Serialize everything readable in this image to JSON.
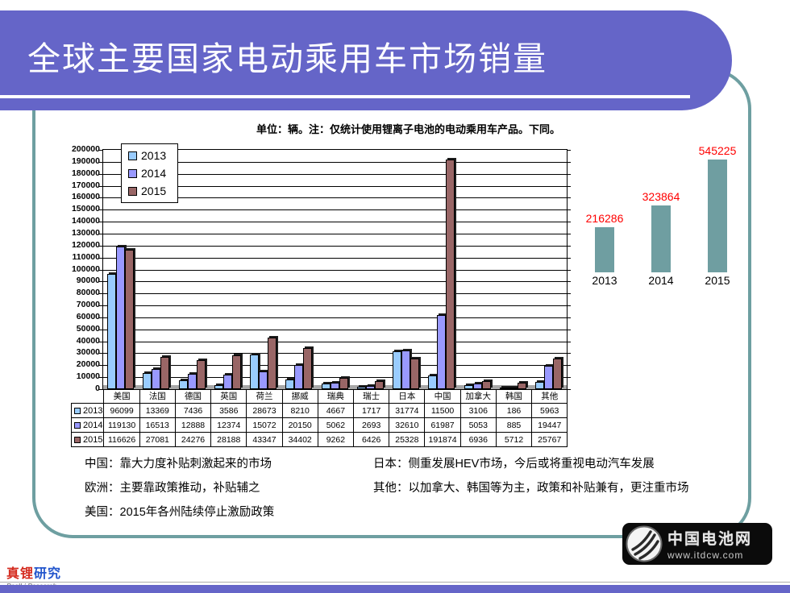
{
  "title": "全球主要国家电动乘用车市场销量",
  "note": "单位：辆。注：仅统计使用锂离子电池的电动乘用车产品。下同。",
  "colors": {
    "banner": "#6565C8",
    "frame_teal": "#6E9FA1",
    "series_2013": "#99CCFF",
    "series_2014": "#9999FF",
    "series_2015": "#996666",
    "mini_bar_teal": "#6F9EA1",
    "mini_label_red": "#FF0000"
  },
  "chart_data": [
    {
      "type": "bar",
      "title": "",
      "categories": [
        "美国",
        "法国",
        "德国",
        "英国",
        "荷兰",
        "挪威",
        "瑞典",
        "瑞士",
        "日本",
        "中国",
        "加拿大",
        "韩国",
        "其他"
      ],
      "series": [
        {
          "name": "2013",
          "color": "#99CCFF",
          "values": [
            96099,
            13369,
            7436,
            3586,
            28673,
            8210,
            4667,
            1717,
            31774,
            11500,
            3106,
            186,
            5963
          ]
        },
        {
          "name": "2014",
          "color": "#9999FF",
          "values": [
            119130,
            16513,
            12888,
            12374,
            15072,
            20150,
            5062,
            2693,
            32610,
            61987,
            5053,
            885,
            19447
          ]
        },
        {
          "name": "2015",
          "color": "#996666",
          "values": [
            116626,
            27081,
            24276,
            28188,
            43347,
            34402,
            9262,
            6426,
            25328,
            191874,
            6936,
            5712,
            25767
          ]
        }
      ],
      "ylim": [
        0,
        200000
      ],
      "ytick_step": 10000,
      "grid": true,
      "legend_position": "top-left-inside",
      "has_data_table": true
    },
    {
      "type": "bar",
      "categories": [
        "2013",
        "2014",
        "2015"
      ],
      "values": [
        216286,
        323864,
        545225
      ],
      "bar_color": "#6F9EA1",
      "label_color": "#FF0000",
      "legend_position": "none",
      "grid": false
    }
  ],
  "annotations": {
    "left": [
      "中国：靠大力度补贴刺激起来的市场",
      "欧洲：主要靠政策推动，补贴辅之",
      "美国：2015年各州陆续停止激励政策"
    ],
    "right": [
      "日本：侧重发展HEV市场，今后或将重视电动汽车发展",
      "其他：以加拿大、韩国等为主，政策和补贴兼有，更注重市场"
    ]
  },
  "footer": {
    "left_logo": {
      "chars": [
        {
          "t": "真",
          "c": "#D42A1E"
        },
        {
          "t": "锂",
          "c": "#D42A1E"
        },
        {
          "t": "研",
          "c": "#2255CC"
        },
        {
          "t": "究",
          "c": "#2255CC"
        }
      ],
      "subtitle": "RealLi Research"
    },
    "right_logo": {
      "name": "中国电池网",
      "url": "www.itdcw.com"
    }
  }
}
